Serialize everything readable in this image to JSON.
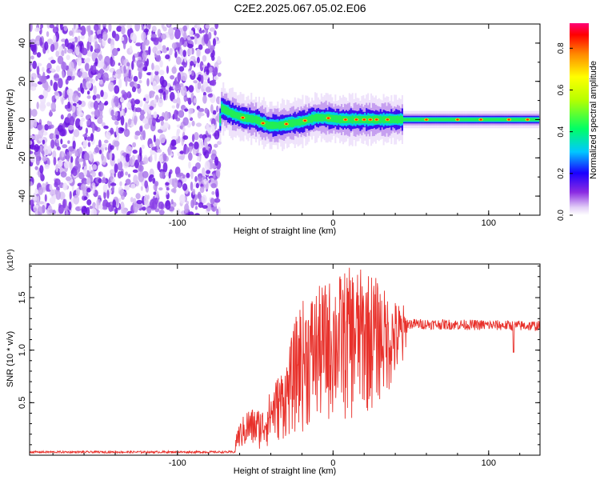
{
  "page": {
    "title": "C2E2.2025.067.05.02.E06"
  },
  "chart_data": [
    {
      "type": "heatmap",
      "name": "spectrogram",
      "xlabel": "Height of straight line (km)",
      "ylabel": "Frequency (Hz)",
      "xlim": [
        -195,
        133
      ],
      "ylim": [
        -50,
        50
      ],
      "x_ticks": [
        -100,
        0,
        100
      ],
      "x_tick_labels": [
        "-100",
        "0",
        "100"
      ],
      "y_ticks": [
        -40,
        -20,
        0,
        20,
        40
      ],
      "y_tick_labels": [
        "-40",
        "-20",
        "0",
        "20",
        "40"
      ],
      "noise_region_x": [
        -195,
        -73
      ],
      "signal_region_x": [
        -73,
        133
      ],
      "signal_center_freq": [
        [
          -72,
          6
        ],
        [
          -65,
          3
        ],
        [
          -58,
          1
        ],
        [
          -50,
          0
        ],
        [
          -42,
          -3
        ],
        [
          -35,
          -3
        ],
        [
          -28,
          -2
        ],
        [
          -20,
          -1
        ],
        [
          -12,
          1
        ],
        [
          -5,
          1
        ],
        [
          5,
          0
        ],
        [
          15,
          0
        ],
        [
          25,
          0
        ],
        [
          35,
          0
        ],
        [
          45,
          0
        ],
        [
          60,
          0
        ],
        [
          80,
          0
        ],
        [
          100,
          0
        ],
        [
          120,
          0
        ],
        [
          133,
          0
        ]
      ],
      "colorbar": {
        "label": "Normalized spectral amplitude",
        "range": [
          0,
          0.92
        ],
        "ticks": [
          0.0,
          0.2,
          0.4,
          0.6,
          0.8
        ],
        "tick_labels": [
          "0.0",
          "0.2",
          "0.4",
          "0.6",
          "0.8"
        ]
      }
    },
    {
      "type": "line",
      "name": "snr",
      "xlabel": "Height of straight line (km)",
      "ylabel": "SNR (10 * v/v)",
      "y_multiplier": "(x10⁴)",
      "xlim": [
        -195,
        133
      ],
      "ylim": [
        0,
        1.82
      ],
      "x_ticks": [
        -100,
        0,
        100
      ],
      "x_tick_labels": [
        "-100",
        "0",
        "100"
      ],
      "y_ticks": [
        0.5,
        1.0,
        1.5
      ],
      "y_tick_labels": [
        "0.5",
        "1.0",
        "1.5"
      ],
      "color": "#e8312b",
      "envelope": [
        [
          -195,
          0.02,
          0.04
        ],
        [
          -63,
          0.02,
          0.04
        ],
        [
          -62,
          0.05,
          0.25
        ],
        [
          -55,
          0.05,
          0.45
        ],
        [
          -45,
          0.05,
          0.45
        ],
        [
          -38,
          0.1,
          0.7
        ],
        [
          -30,
          0.15,
          0.9
        ],
        [
          -22,
          0.2,
          1.45
        ],
        [
          -10,
          0.25,
          1.6
        ],
        [
          0,
          0.3,
          1.7
        ],
        [
          12,
          0.3,
          1.8
        ],
        [
          25,
          0.4,
          1.75
        ],
        [
          37,
          0.6,
          1.5
        ],
        [
          45,
          0.75,
          1.45
        ],
        [
          48,
          1.2,
          1.3
        ],
        [
          133,
          1.18,
          1.28
        ]
      ]
    }
  ],
  "colors": {
    "noise_light": "#e3d2f7",
    "noise_dark": "#6a1fe0",
    "signal_line": "#e8312b"
  }
}
